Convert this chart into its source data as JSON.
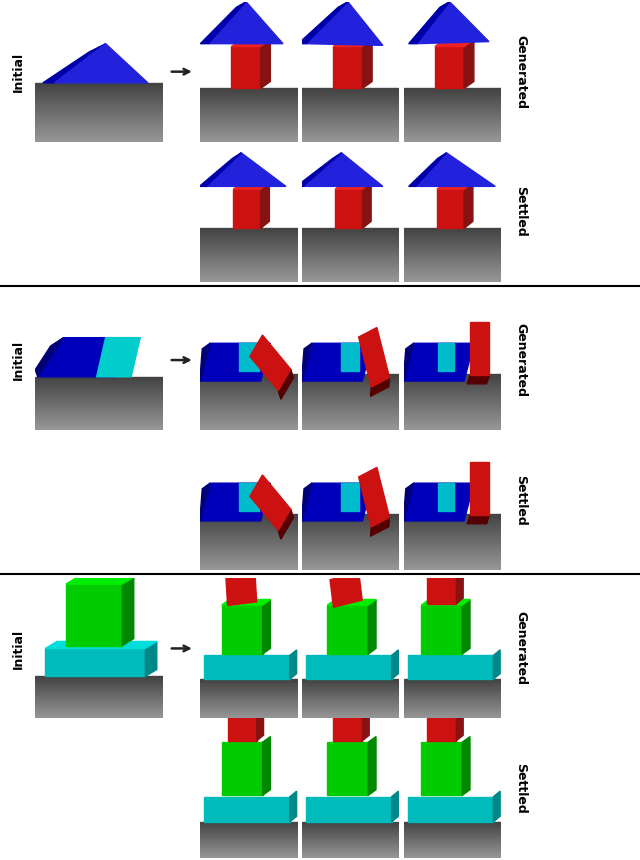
{
  "figure_width": 6.4,
  "figure_height": 8.6,
  "dpi": 100,
  "bg_color": "#ffffff",
  "label_initial": "Initial",
  "label_generated": "Generated",
  "label_settled": "Settled"
}
